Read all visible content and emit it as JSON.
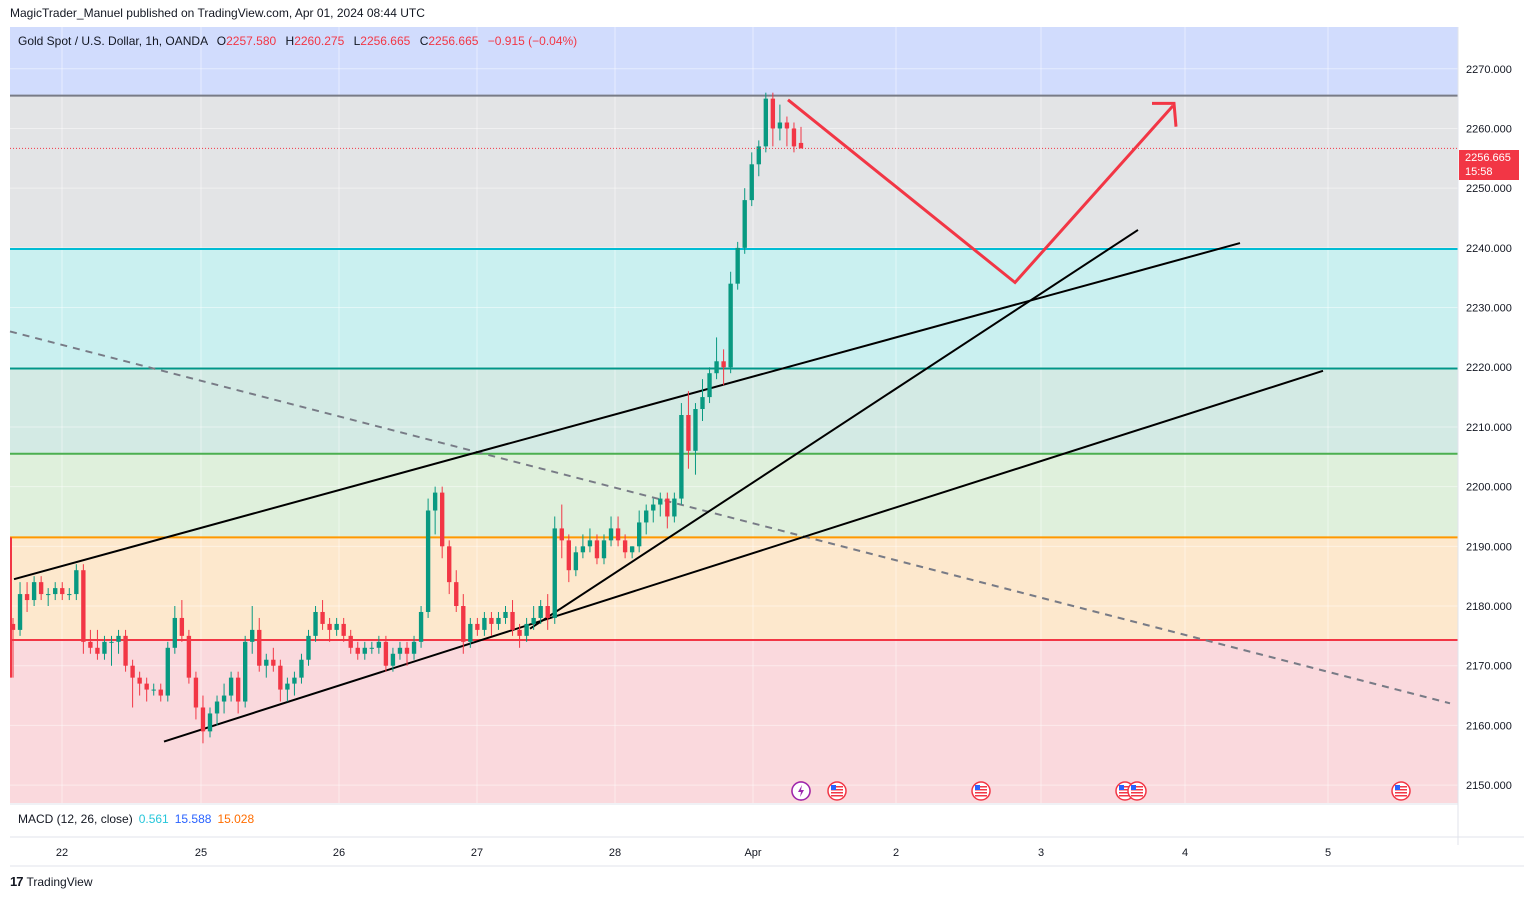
{
  "header": {
    "publisher": "MagicTrader_Manuel published on TradingView.com, Apr 01, 2024 08:44 UTC"
  },
  "legend": {
    "symbol": "Gold Spot / U.S. Dollar, 1h, OANDA",
    "open_label": "O",
    "open": "2257.580",
    "high_label": "H",
    "high": "2260.275",
    "low_label": "L",
    "low": "2256.665",
    "close_label": "C",
    "close": "2256.665",
    "change": "−0.915 (−0.04%)"
  },
  "macd": {
    "label": "MACD (12, 26, close)",
    "v1": "0.561",
    "v2": "15.588",
    "v3": "15.028"
  },
  "price_tag": {
    "price": "2256.665",
    "countdown": "15:58"
  },
  "footer": {
    "brand": "TradingView",
    "logo_text": "17"
  },
  "colors": {
    "up": "#089981",
    "down": "#f23645",
    "projection": "#f23645",
    "trend": "#000000"
  },
  "event_icons": [
    "lightning-icon",
    "us-flag-icon",
    "us-flag-icon",
    "us-flag-icon",
    "us-flag-icon",
    "us-flag-icon"
  ],
  "chart_data": {
    "type": "candlestick",
    "title": "",
    "ylim": [
      2147,
      2277
    ],
    "y_ticks": [
      "2270.000",
      "2260.000",
      "2250.000",
      "2240.000",
      "2230.000",
      "2220.000",
      "2210.000",
      "2200.000",
      "2190.000",
      "2180.000",
      "2170.000",
      "2160.000",
      "2150.000"
    ],
    "x_ticks": [
      "22",
      "25",
      "26",
      "27",
      "28",
      "Apr",
      "2",
      "3",
      "4",
      "5"
    ],
    "zones": [
      {
        "from": 2265.5,
        "to": 2277,
        "color": "#d1dcfd"
      },
      {
        "from": 2239.8,
        "to": 2265.5,
        "color": "#e3e4e6"
      },
      {
        "from": 2219.8,
        "to": 2239.8,
        "color": "#caf0f0"
      },
      {
        "from": 2205.5,
        "to": 2219.8,
        "color": "#d3eae4"
      },
      {
        "from": 2191.5,
        "to": 2205.5,
        "color": "#dff0dc"
      },
      {
        "from": 2174.3,
        "to": 2191.5,
        "color": "#fde8cd"
      },
      {
        "from": 2147,
        "to": 2174.3,
        "color": "#fad9dd"
      }
    ],
    "levels": [
      {
        "price": 2265.5,
        "color": "#787b86"
      },
      {
        "price": 2239.8,
        "color": "#00bcd4"
      },
      {
        "price": 2219.8,
        "color": "#009688"
      },
      {
        "price": 2205.5,
        "color": "#4caf50"
      },
      {
        "price": 2191.5,
        "color": "#ff9800"
      },
      {
        "price": 2174.3,
        "color": "#f23645"
      }
    ],
    "last_price": 2256.665,
    "candles": [
      [
        2177,
        2178,
        2168,
        2176
      ],
      [
        2176,
        2184,
        2175,
        2182
      ],
      [
        2182,
        2184,
        2179,
        2181
      ],
      [
        2181,
        2185,
        2180,
        2184
      ],
      [
        2184,
        2185,
        2181,
        2182
      ],
      [
        2182,
        2183,
        2180,
        2182
      ],
      [
        2182,
        2184,
        2181,
        2183
      ],
      [
        2183,
        2184,
        2181,
        2182
      ],
      [
        2182,
        2183,
        2181,
        2182
      ],
      [
        2182,
        2187,
        2181,
        2186
      ],
      [
        2186,
        2187,
        2172,
        2174
      ],
      [
        2174,
        2176,
        2172,
        2173
      ],
      [
        2173,
        2176,
        2171,
        2172
      ],
      [
        2172,
        2175,
        2171,
        2174
      ],
      [
        2174,
        2175,
        2170,
        2174
      ],
      [
        2174,
        2176,
        2172,
        2175
      ],
      [
        2175,
        2176,
        2169,
        2170
      ],
      [
        2170,
        2171,
        2163,
        2168
      ],
      [
        2168,
        2169,
        2165,
        2167
      ],
      [
        2167,
        2168,
        2164,
        2166
      ],
      [
        2166,
        2167,
        2165,
        2166
      ],
      [
        2166,
        2167,
        2164,
        2165
      ],
      [
        2165,
        2174,
        2164,
        2173
      ],
      [
        2173,
        2180,
        2172,
        2178
      ],
      [
        2178,
        2181,
        2174,
        2175
      ],
      [
        2175,
        2176,
        2167,
        2168
      ],
      [
        2168,
        2169,
        2161,
        2163
      ],
      [
        2163,
        2165,
        2157,
        2159
      ],
      [
        2159,
        2163,
        2158,
        2162
      ],
      [
        2162,
        2165,
        2160,
        2164
      ],
      [
        2164,
        2167,
        2162,
        2165
      ],
      [
        2165,
        2169,
        2164,
        2168
      ],
      [
        2168,
        2169,
        2162,
        2164
      ],
      [
        2164,
        2175,
        2163,
        2174
      ],
      [
        2174,
        2180,
        2172,
        2176
      ],
      [
        2176,
        2178,
        2169,
        2170
      ],
      [
        2170,
        2172,
        2168,
        2171
      ],
      [
        2171,
        2173,
        2169,
        2170
      ],
      [
        2170,
        2171,
        2164,
        2166
      ],
      [
        2166,
        2168,
        2164,
        2167
      ],
      [
        2167,
        2169,
        2165,
        2168
      ],
      [
        2168,
        2172,
        2167,
        2171
      ],
      [
        2171,
        2176,
        2170,
        2175
      ],
      [
        2175,
        2180,
        2174,
        2179
      ],
      [
        2179,
        2181,
        2176,
        2177
      ],
      [
        2177,
        2178,
        2174,
        2176
      ],
      [
        2176,
        2178,
        2175,
        2177
      ],
      [
        2177,
        2178,
        2174,
        2175
      ],
      [
        2175,
        2176,
        2172,
        2173
      ],
      [
        2173,
        2174,
        2171,
        2172
      ],
      [
        2172,
        2174,
        2171,
        2173
      ],
      [
        2173,
        2174,
        2172,
        2173
      ],
      [
        2173,
        2175,
        2172,
        2174
      ],
      [
        2174,
        2175,
        2169,
        2170
      ],
      [
        2170,
        2173,
        2169,
        2172
      ],
      [
        2172,
        2174,
        2171,
        2173
      ],
      [
        2173,
        2174,
        2170,
        2172
      ],
      [
        2172,
        2175,
        2171,
        2174
      ],
      [
        2174,
        2180,
        2173,
        2179
      ],
      [
        2179,
        2198,
        2178,
        2196
      ],
      [
        2196,
        2200,
        2192,
        2199
      ],
      [
        2199,
        2200,
        2188,
        2190
      ],
      [
        2190,
        2191,
        2182,
        2184
      ],
      [
        2184,
        2186,
        2179,
        2180
      ],
      [
        2180,
        2182,
        2172,
        2174
      ],
      [
        2174,
        2178,
        2173,
        2177
      ],
      [
        2177,
        2178,
        2175,
        2176
      ],
      [
        2176,
        2179,
        2175,
        2178
      ],
      [
        2178,
        2179,
        2175,
        2177
      ],
      [
        2177,
        2179,
        2176,
        2178
      ],
      [
        2178,
        2180,
        2177,
        2179
      ],
      [
        2179,
        2181,
        2175,
        2176
      ],
      [
        2176,
        2177,
        2173,
        2175
      ],
      [
        2175,
        2178,
        2174,
        2177
      ],
      [
        2177,
        2180,
        2176,
        2178
      ],
      [
        2178,
        2181,
        2177,
        2180
      ],
      [
        2180,
        2182,
        2176,
        2178
      ],
      [
        2178,
        2195,
        2177,
        2193
      ],
      [
        2193,
        2197,
        2188,
        2191
      ],
      [
        2191,
        2192,
        2184,
        2186
      ],
      [
        2186,
        2190,
        2185,
        2189
      ],
      [
        2189,
        2192,
        2188,
        2190
      ],
      [
        2190,
        2193,
        2189,
        2191
      ],
      [
        2191,
        2192,
        2187,
        2188
      ],
      [
        2188,
        2192,
        2187,
        2191
      ],
      [
        2191,
        2195,
        2190,
        2193
      ],
      [
        2193,
        2195,
        2190,
        2191
      ],
      [
        2191,
        2192,
        2188,
        2189
      ],
      [
        2189,
        2190,
        2188,
        2190
      ],
      [
        2190,
        2196,
        2189,
        2194
      ],
      [
        2194,
        2197,
        2192,
        2196
      ],
      [
        2196,
        2198,
        2194,
        2197
      ],
      [
        2197,
        2199,
        2195,
        2198
      ],
      [
        2198,
        2199,
        2193,
        2195
      ],
      [
        2195,
        2199,
        2194,
        2198
      ],
      [
        2198,
        2214,
        2197,
        2212
      ],
      [
        2212,
        2216,
        2203,
        2206
      ],
      [
        2206,
        2214,
        2202,
        2213
      ],
      [
        2213,
        2218,
        2211,
        2215
      ],
      [
        2215,
        2220,
        2214,
        2219
      ],
      [
        2219,
        2225,
        2218,
        2221
      ],
      [
        2221,
        2223,
        2217,
        2220
      ],
      [
        2220,
        2236,
        2219,
        2234
      ],
      [
        2234,
        2241,
        2233,
        2240
      ],
      [
        2240,
        2250,
        2239,
        2248
      ],
      [
        2248,
        2256,
        2247,
        2254
      ],
      [
        2254,
        2258,
        2252,
        2257
      ],
      [
        2257,
        2266,
        2256,
        2265
      ],
      [
        2265,
        2266,
        2257,
        2260
      ],
      [
        2260,
        2264,
        2258,
        2261
      ],
      [
        2261,
        2262,
        2257,
        2260
      ],
      [
        2260,
        2261,
        2256,
        2257
      ],
      [
        2257.58,
        2260.275,
        2256.665,
        2256.665
      ]
    ]
  }
}
